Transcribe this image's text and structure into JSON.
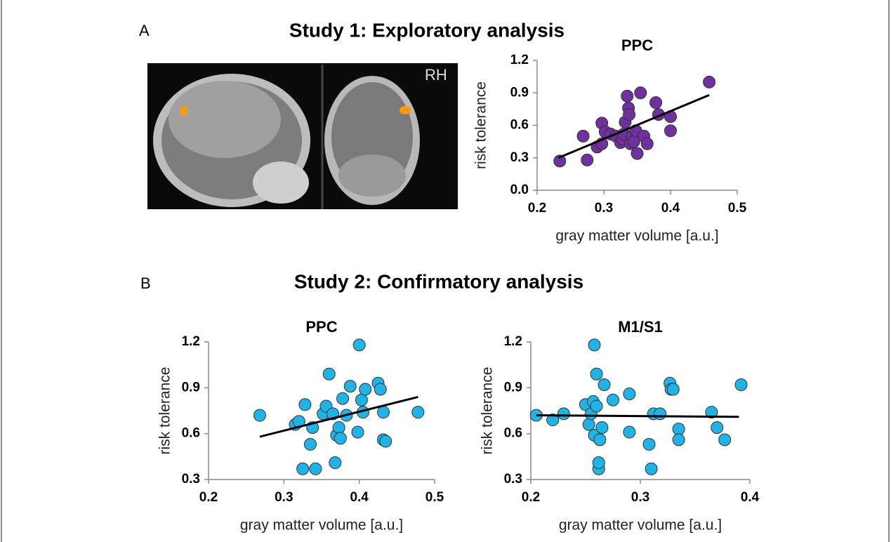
{
  "panels": [
    {
      "letter": "A",
      "heading": "Study 1: Exploratory analysis",
      "image_label": "RH"
    },
    {
      "letter": "B",
      "heading": "Study 2: Confirmatory analysis"
    }
  ],
  "chart_data": [
    {
      "type": "scatter",
      "title": "PPC",
      "x_label": "gray matter volume [a.u.]",
      "y_label": "risk tolerance",
      "color": "#7030a0",
      "x": [
        0.234,
        0.269,
        0.275,
        0.29,
        0.297,
        0.297,
        0.302,
        0.31,
        0.318,
        0.325,
        0.328,
        0.33,
        0.332,
        0.335,
        0.337,
        0.338,
        0.34,
        0.343,
        0.345,
        0.348,
        0.35,
        0.355,
        0.36,
        0.365,
        0.378,
        0.382,
        0.4,
        0.4,
        0.458
      ],
      "y": [
        0.27,
        0.5,
        0.28,
        0.4,
        0.43,
        0.62,
        0.54,
        0.52,
        0.5,
        0.44,
        0.47,
        0.52,
        0.63,
        0.87,
        0.76,
        0.7,
        0.43,
        0.5,
        0.45,
        0.55,
        0.34,
        0.9,
        0.5,
        0.43,
        0.81,
        0.7,
        0.68,
        0.55,
        1.0
      ],
      "trendline": {
        "x": [
          0.232,
          0.458
        ],
        "y": [
          0.3,
          0.88
        ]
      },
      "xlim": [
        0.2,
        0.5
      ],
      "ylim": [
        0,
        1.2
      ],
      "xticks": [
        0.2,
        0.3,
        0.4,
        0.5
      ],
      "yticks": [
        {
          "value": 0,
          "label": "0.0"
        },
        0.3,
        0.6,
        0.9,
        1.2
      ]
    },
    {
      "type": "scatter",
      "title": "PPC",
      "x_label": "gray matter volume [a.u.]",
      "y_label": "risk tolerance",
      "color": "#1fb4e8",
      "x": [
        0.268,
        0.315,
        0.32,
        0.325,
        0.328,
        0.335,
        0.338,
        0.342,
        0.352,
        0.356,
        0.36,
        0.365,
        0.368,
        0.37,
        0.373,
        0.375,
        0.378,
        0.383,
        0.388,
        0.398,
        0.4,
        0.403,
        0.405,
        0.408,
        0.425,
        0.428,
        0.432,
        0.432,
        0.435,
        0.478
      ],
      "y": [
        0.72,
        0.66,
        0.68,
        0.37,
        0.79,
        0.53,
        0.64,
        0.37,
        0.73,
        0.78,
        0.99,
        0.73,
        0.41,
        0.59,
        0.64,
        0.57,
        0.83,
        0.72,
        0.91,
        0.61,
        1.18,
        0.82,
        0.74,
        0.89,
        0.93,
        0.89,
        0.74,
        0.56,
        0.55,
        0.74
      ],
      "trendline": {
        "x": [
          0.268,
          0.478
        ],
        "y": [
          0.58,
          0.84
        ]
      },
      "xlim": [
        0.2,
        0.5
      ],
      "ylim": [
        0.3,
        1.2
      ],
      "xticks": [
        0.2,
        0.3,
        0.4,
        0.5
      ],
      "yticks": [
        0.3,
        0.6,
        0.9,
        1.2
      ]
    },
    {
      "type": "scatter",
      "title": "M1/S1",
      "x_label": "gray matter volume [a.u.]",
      "y_label": "risk tolerance",
      "color": "#1fb4e8",
      "x": [
        0.205,
        0.22,
        0.23,
        0.25,
        0.253,
        0.255,
        0.257,
        0.258,
        0.258,
        0.26,
        0.26,
        0.262,
        0.262,
        0.263,
        0.265,
        0.267,
        0.275,
        0.29,
        0.29,
        0.308,
        0.31,
        0.312,
        0.318,
        0.327,
        0.328,
        0.33,
        0.335,
        0.335,
        0.365,
        0.37,
        0.377,
        0.392
      ],
      "y": [
        0.72,
        0.69,
        0.73,
        0.79,
        0.66,
        0.73,
        0.81,
        0.59,
        1.18,
        0.99,
        0.78,
        0.37,
        0.41,
        0.56,
        0.64,
        0.92,
        0.82,
        0.86,
        0.61,
        0.53,
        0.37,
        0.73,
        0.73,
        0.93,
        0.89,
        0.89,
        0.63,
        0.56,
        0.74,
        0.64,
        0.56,
        0.92
      ],
      "trendline": {
        "x": [
          0.205,
          0.39
        ],
        "y": [
          0.72,
          0.71
        ]
      },
      "xlim": [
        0.2,
        0.4
      ],
      "ylim": [
        0.3,
        1.2
      ],
      "xticks": [
        0.2,
        0.3,
        0.4
      ],
      "yticks": [
        0.3,
        0.6,
        0.9,
        1.2
      ]
    }
  ]
}
